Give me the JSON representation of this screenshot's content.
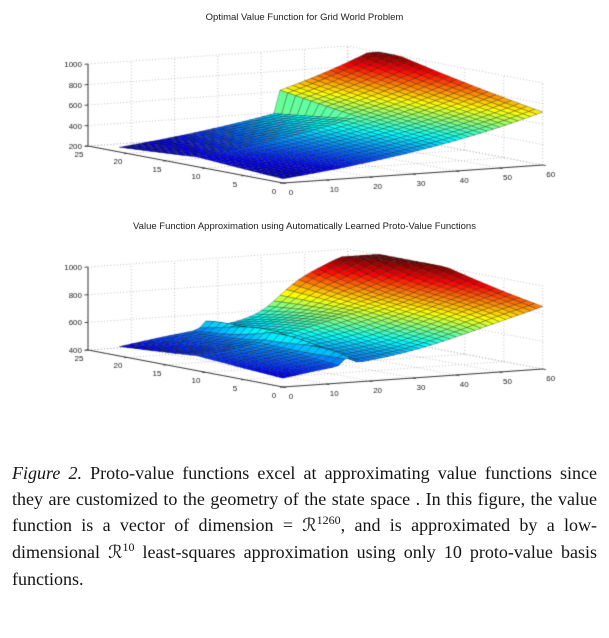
{
  "caption": {
    "segments": [
      {
        "text": "Figure 2.",
        "style": "italic"
      },
      {
        "text": " Proto-value functions excel at approximating value functions since they are customized to the geometry of the state space . In this figure, the value function is a vector of dimension = "
      },
      {
        "text": "ℛ",
        "style": "script"
      },
      {
        "text": "1260",
        "style": "sup"
      },
      {
        "text": ", and is approximated by a low-dimensional "
      },
      {
        "text": "ℛ",
        "style": "script"
      },
      {
        "text": "10",
        "style": "sup"
      },
      {
        "text": " least-squares approximation using only 10 proto-value basis functions."
      }
    ]
  },
  "chart_data": [
    {
      "type": "surface",
      "title": "Optimal Value Function for Grid World Problem",
      "colormap": "jet",
      "x_range": [
        0,
        60
      ],
      "y_range": [
        0,
        25
      ],
      "z_range": [
        200,
        1000
      ],
      "x_ticks": [
        0,
        10,
        20,
        30,
        40,
        50,
        60
      ],
      "y_ticks": [
        0,
        5,
        10,
        15,
        20,
        25
      ],
      "z_ticks": [
        200,
        400,
        600,
        800,
        1000
      ],
      "grid": true,
      "surface_extent": {
        "x": [
          0,
          60
        ],
        "y": [
          0,
          21
        ]
      },
      "mesh": {
        "nx": 42,
        "ny": 21
      },
      "surface_model": {
        "v_max": 1050,
        "gamma": 0.982,
        "goal": [
          60,
          21
        ],
        "wall_u": 36,
        "pass_v": 11,
        "clip_min": 205,
        "clamp_max": 1000
      }
    },
    {
      "type": "surface",
      "title": "Value Function Approximation using Automatically Learned Proto-Value Functions",
      "colormap": "jet",
      "x_range": [
        0,
        60
      ],
      "y_range": [
        0,
        25
      ],
      "z_range": [
        400,
        1000
      ],
      "x_ticks": [
        0,
        10,
        20,
        30,
        40,
        50,
        60
      ],
      "y_ticks": [
        0,
        5,
        10,
        15,
        20,
        25
      ],
      "z_ticks": [
        400,
        600,
        800,
        1000
      ],
      "grid": true,
      "surface_extent": {
        "x": [
          0,
          60
        ],
        "y": [
          0,
          21
        ]
      },
      "mesh": {
        "nx": 42,
        "ny": 21
      },
      "surface_model": {
        "v_max": 1050,
        "gamma": 0.982,
        "goal": [
          60,
          21
        ],
        "wall_u": 36,
        "pass_v": 11,
        "smooth": 2.5,
        "base": 430,
        "scale": 0.82,
        "ref_min": 200,
        "ridge": {
          "x": 15,
          "skew": 0.25,
          "width": 1.4,
          "height": 55
        },
        "wave": {
          "amp": 15,
          "fx": 0.16,
          "fy": 0.3
        },
        "clip_min": 425,
        "clamp_max": 1005
      }
    }
  ],
  "style": {
    "axis_color": "#3a3a3a",
    "grid_color": "#ababab",
    "label_color": "#222222",
    "mesh_line_color": "rgba(0,0,0,0.55)"
  }
}
